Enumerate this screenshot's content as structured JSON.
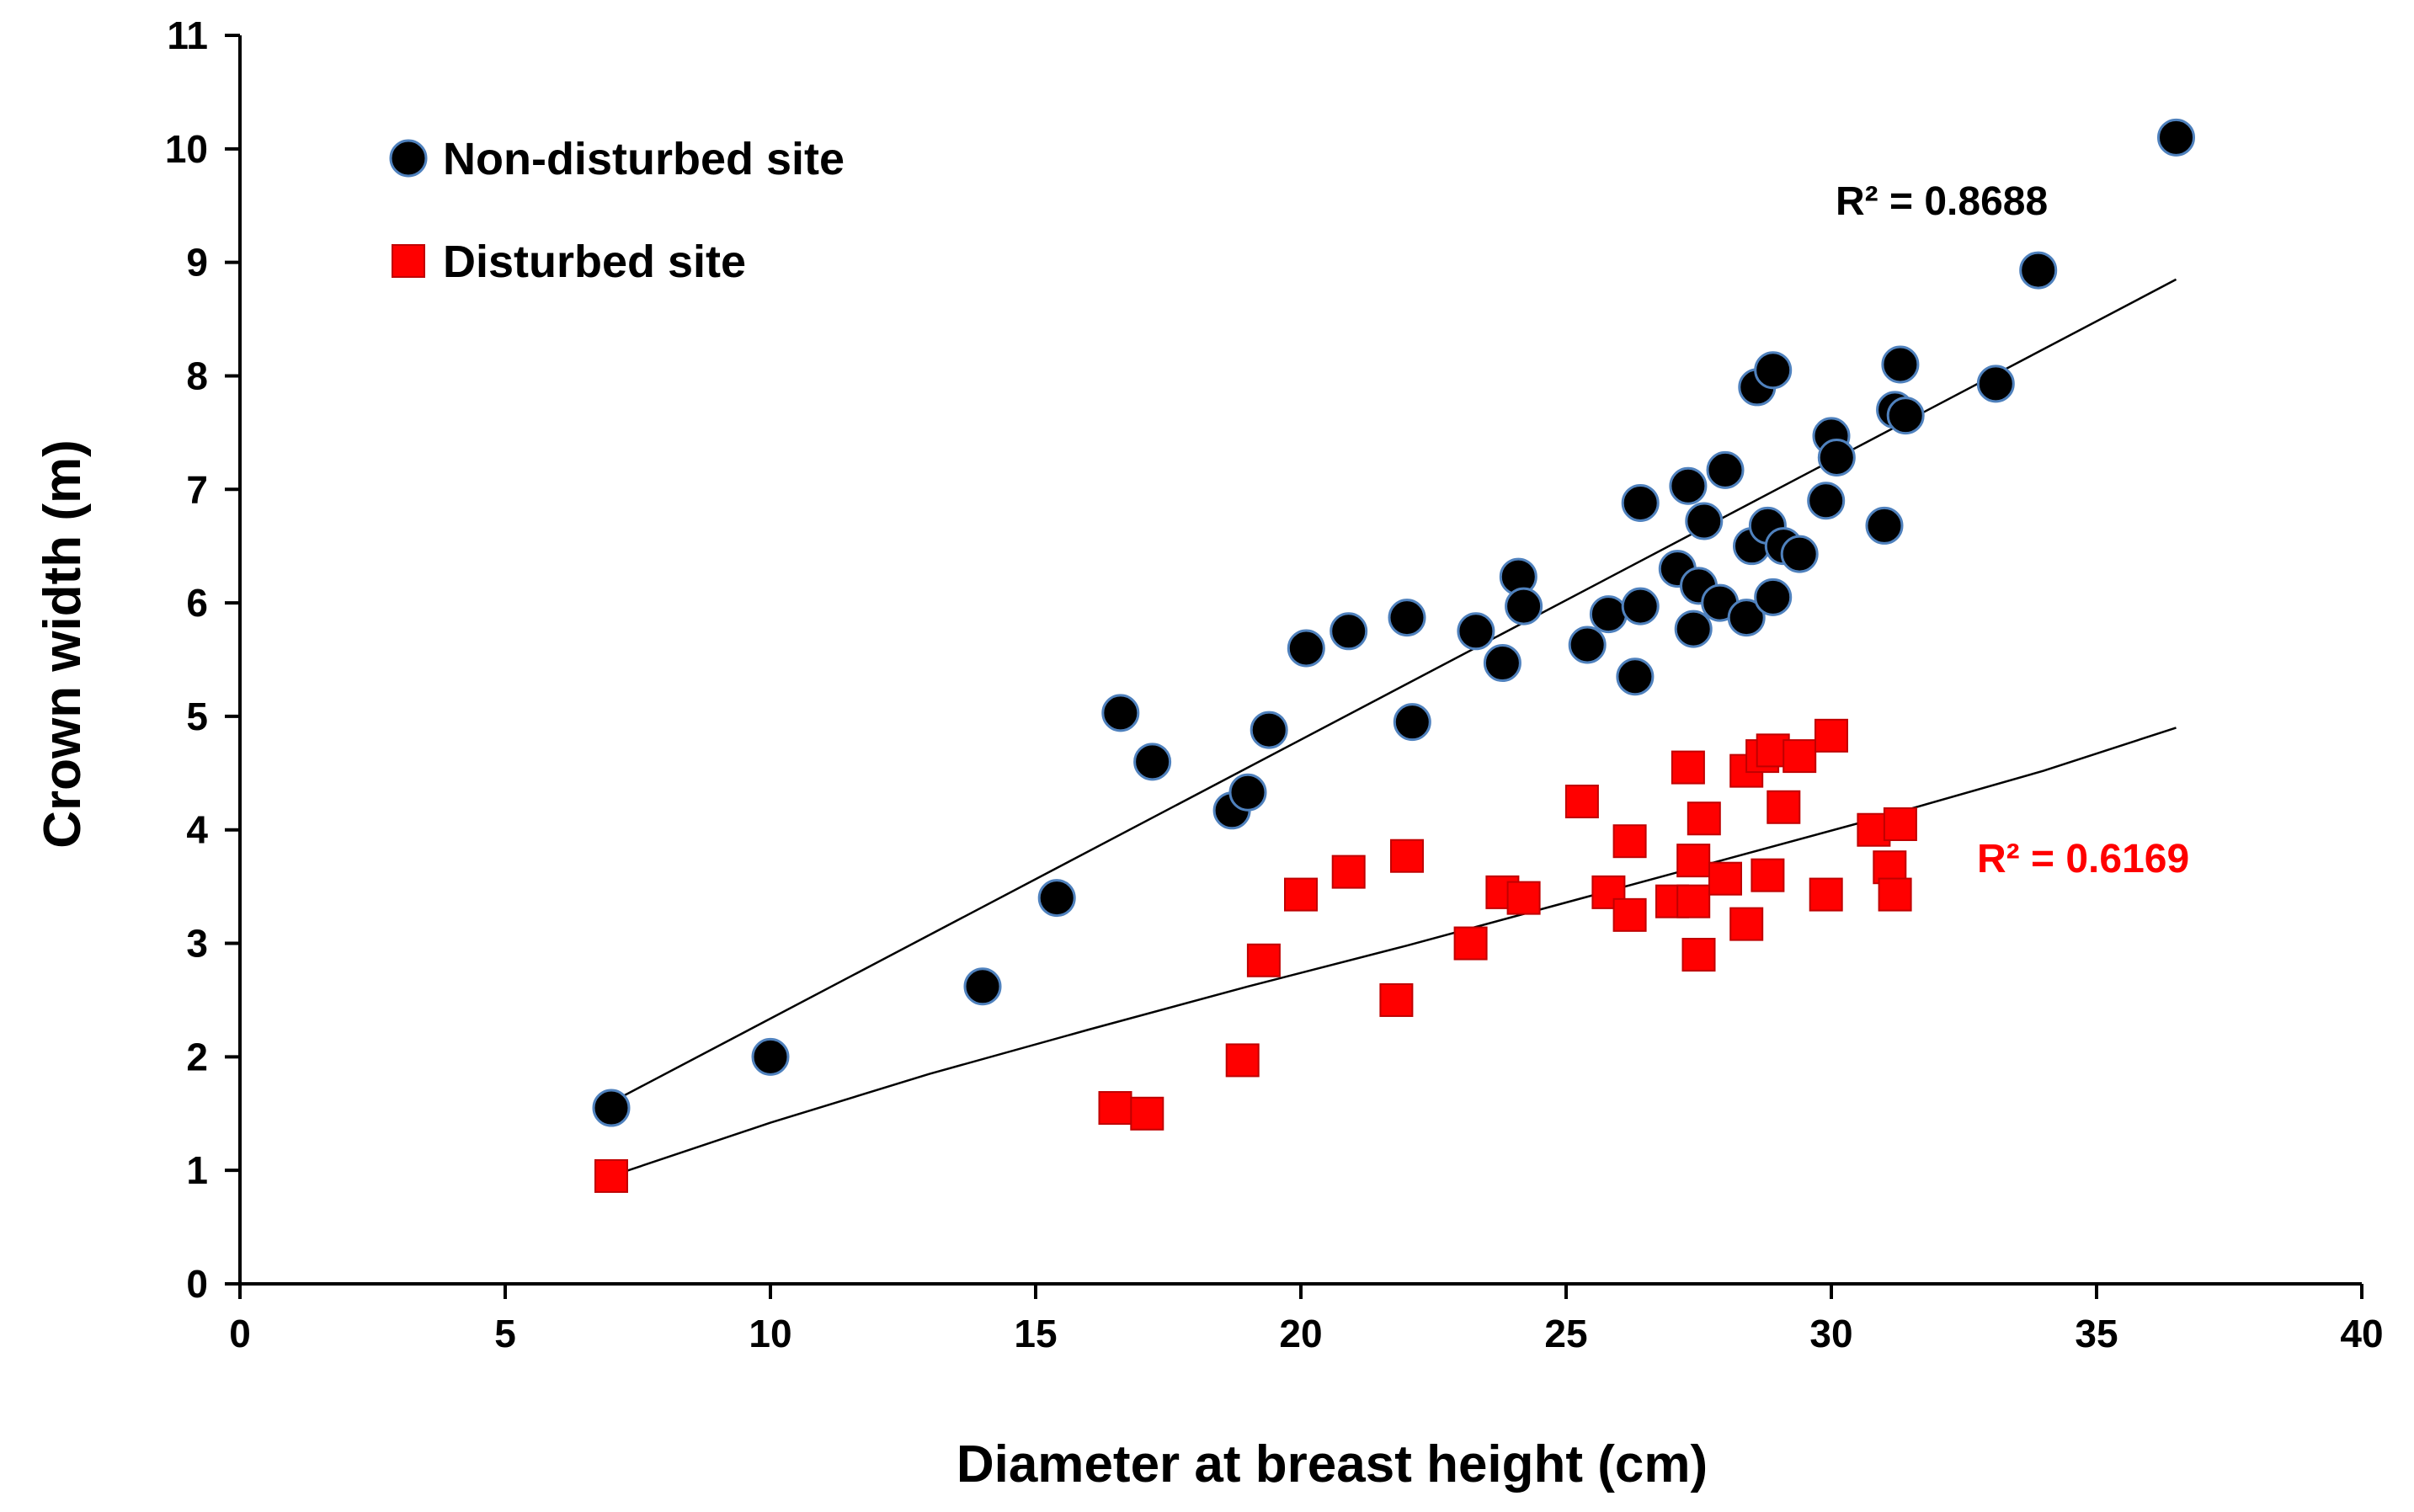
{
  "chart_data": {
    "type": "scatter",
    "xlabel": "Diameter at breast height (cm)",
    "ylabel": "Crown width (m)",
    "xlim": [
      0,
      40
    ],
    "ylim": [
      0,
      11
    ],
    "x_ticks": [
      0,
      5,
      10,
      15,
      20,
      25,
      30,
      35,
      40
    ],
    "y_ticks": [
      0,
      1,
      2,
      3,
      4,
      5,
      6,
      7,
      8,
      9,
      10,
      11
    ],
    "grid": false,
    "legend_position": "top-left",
    "series": [
      {
        "name": "Non-disturbed site",
        "marker": "circle",
        "color": "#000000",
        "edge_color": "#4f81bd",
        "points": [
          [
            7.0,
            1.55
          ],
          [
            10.0,
            2.0
          ],
          [
            14.0,
            2.62
          ],
          [
            15.4,
            3.4
          ],
          [
            16.6,
            5.03
          ],
          [
            17.2,
            4.6
          ],
          [
            18.7,
            4.17
          ],
          [
            19.0,
            4.33
          ],
          [
            19.4,
            4.88
          ],
          [
            20.1,
            5.6
          ],
          [
            20.9,
            5.75
          ],
          [
            22.0,
            5.87
          ],
          [
            22.1,
            4.95
          ],
          [
            23.3,
            5.75
          ],
          [
            23.8,
            5.47
          ],
          [
            24.1,
            6.23
          ],
          [
            24.2,
            5.97
          ],
          [
            25.4,
            5.63
          ],
          [
            25.8,
            5.9
          ],
          [
            26.3,
            5.35
          ],
          [
            26.4,
            5.97
          ],
          [
            26.4,
            6.88
          ],
          [
            27.1,
            6.3
          ],
          [
            27.3,
            7.03
          ],
          [
            27.4,
            5.77
          ],
          [
            27.5,
            6.15
          ],
          [
            27.6,
            6.72
          ],
          [
            27.9,
            6.0
          ],
          [
            28.0,
            7.17
          ],
          [
            28.4,
            5.87
          ],
          [
            28.5,
            6.5
          ],
          [
            28.6,
            7.9
          ],
          [
            28.8,
            6.68
          ],
          [
            28.9,
            8.05
          ],
          [
            28.9,
            6.05
          ],
          [
            29.1,
            6.5
          ],
          [
            29.4,
            6.43
          ],
          [
            29.9,
            6.9
          ],
          [
            30.0,
            7.47
          ],
          [
            30.1,
            7.28
          ],
          [
            31.0,
            6.68
          ],
          [
            31.2,
            7.7
          ],
          [
            31.3,
            8.1
          ],
          [
            31.4,
            7.65
          ],
          [
            33.1,
            7.93
          ],
          [
            33.9,
            8.93
          ],
          [
            36.5,
            10.1
          ]
        ],
        "trendline": {
          "x": [
            7.0,
            36.5
          ],
          "y": [
            1.6,
            8.85
          ]
        },
        "r_squared": "R² = 0.8688",
        "r_squared_color": "#000000"
      },
      {
        "name": "Disturbed site",
        "marker": "square",
        "color": "#ff0000",
        "edge_color": "#c00000",
        "points": [
          [
            7.0,
            0.95
          ],
          [
            16.5,
            1.55
          ],
          [
            17.1,
            1.5
          ],
          [
            18.9,
            1.97
          ],
          [
            19.3,
            2.85
          ],
          [
            20.0,
            3.43
          ],
          [
            20.9,
            3.63
          ],
          [
            21.8,
            2.5
          ],
          [
            22.0,
            3.77
          ],
          [
            23.2,
            3.0
          ],
          [
            23.8,
            3.45
          ],
          [
            24.2,
            3.4
          ],
          [
            25.3,
            4.25
          ],
          [
            25.8,
            3.45
          ],
          [
            26.2,
            3.25
          ],
          [
            26.2,
            3.9
          ],
          [
            27.0,
            3.37
          ],
          [
            27.3,
            4.55
          ],
          [
            27.4,
            3.73
          ],
          [
            27.4,
            3.37
          ],
          [
            27.5,
            2.9
          ],
          [
            27.6,
            4.1
          ],
          [
            28.0,
            3.57
          ],
          [
            28.4,
            4.52
          ],
          [
            28.4,
            3.17
          ],
          [
            28.7,
            4.65
          ],
          [
            28.8,
            3.6
          ],
          [
            28.9,
            4.7
          ],
          [
            29.1,
            4.2
          ],
          [
            29.4,
            4.65
          ],
          [
            29.9,
            3.43
          ],
          [
            30.0,
            4.83
          ],
          [
            30.8,
            4.0
          ],
          [
            31.1,
            3.67
          ],
          [
            31.2,
            3.43
          ],
          [
            31.3,
            4.05
          ]
        ],
        "trendline": {
          "x": [
            7.0,
            10.0,
            13.0,
            16.0,
            19.0,
            22.0,
            25.0,
            28.0,
            31.0,
            34.0,
            36.5
          ],
          "y": [
            0.95,
            1.42,
            1.85,
            2.24,
            2.62,
            2.98,
            3.36,
            3.74,
            4.12,
            4.52,
            4.9
          ]
        },
        "r_squared": "R² = 0.6169",
        "r_squared_color": "#ff0000"
      }
    ]
  }
}
